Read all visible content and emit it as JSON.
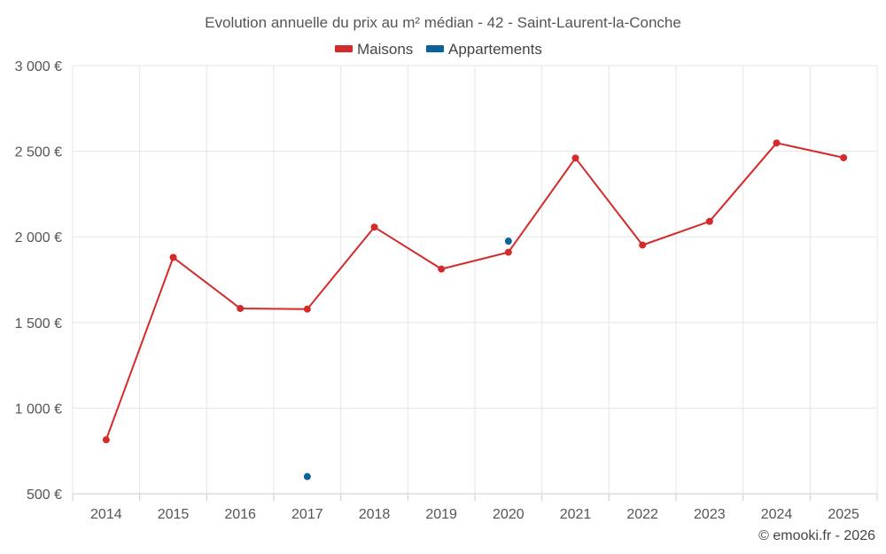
{
  "chart_data": {
    "type": "line",
    "title": "Evolution annuelle du prix au m² médian - 42 - Saint-Laurent-la-Conche",
    "categories": [
      "2014",
      "2015",
      "2016",
      "2017",
      "2018",
      "2019",
      "2020",
      "2021",
      "2022",
      "2023",
      "2024",
      "2025"
    ],
    "series": [
      {
        "name": "Maisons",
        "color": "#d42a2a",
        "values": [
          815,
          1880,
          1582,
          1578,
          2057,
          1812,
          1910,
          2460,
          1952,
          2090,
          2548,
          2462
        ]
      },
      {
        "name": "Appartements",
        "color": "#0b6299",
        "values": [
          null,
          null,
          null,
          600,
          null,
          null,
          1975,
          null,
          null,
          null,
          null,
          null
        ]
      }
    ],
    "ylim": [
      500,
      3000
    ],
    "yticks": [
      500,
      1000,
      1500,
      2000,
      2500,
      3000
    ],
    "ytick_labels": [
      "500 €",
      "1 000 €",
      "1 500 €",
      "2 000 €",
      "2 500 €",
      "3 000 €"
    ],
    "xlabel": "",
    "ylabel": "",
    "grid": true,
    "legend": "top-center",
    "credit": "© emooki.fr - 2026"
  }
}
